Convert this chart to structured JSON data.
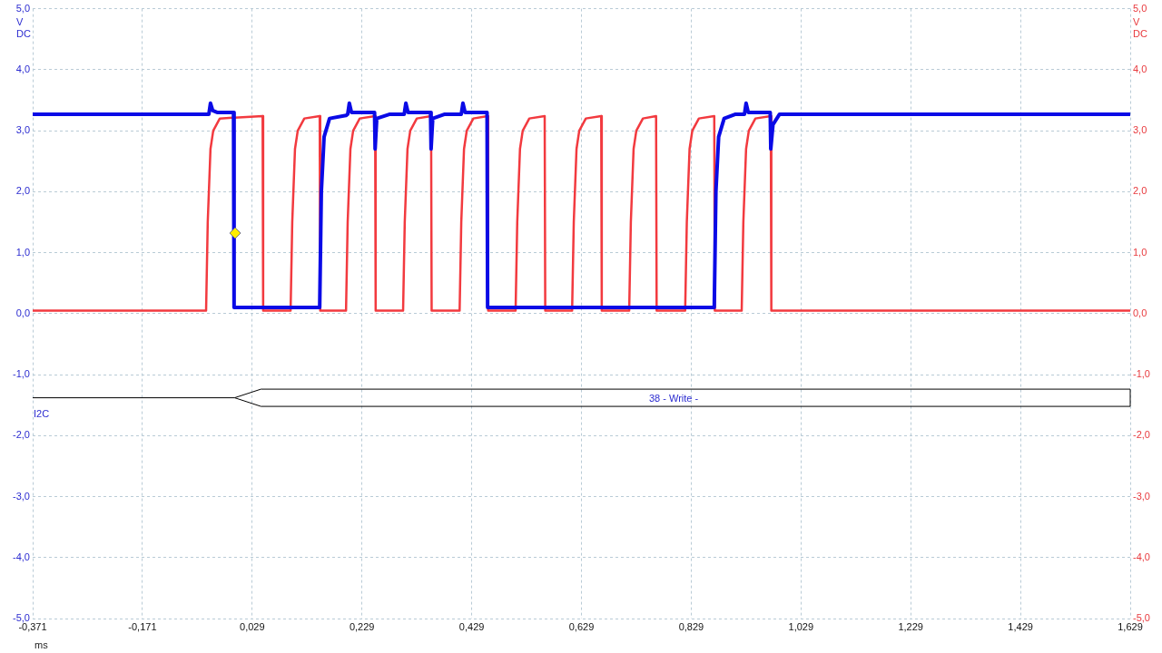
{
  "chart_data": {
    "type": "line",
    "xlabel": "ms",
    "ylabel": "V DC",
    "y2label": "V DC",
    "annotations": [
      "38 - Write -",
      "I2C"
    ],
    "xlim": [
      -0.371,
      1.629
    ],
    "xticks": [
      {
        "value": -0.371,
        "label": "-0,371"
      },
      {
        "value": -0.171,
        "label": "-0,171"
      },
      {
        "value": 0.029,
        "label": "0,029"
      },
      {
        "value": 0.229,
        "label": "0,229"
      },
      {
        "value": 0.429,
        "label": "0,429"
      },
      {
        "value": 0.629,
        "label": "0,629"
      },
      {
        "value": 0.829,
        "label": "0,829"
      },
      {
        "value": 1.029,
        "label": "1,029"
      },
      {
        "value": 1.229,
        "label": "1,229"
      },
      {
        "value": 1.429,
        "label": "1,429"
      },
      {
        "value": 1.629,
        "label": "1,629"
      }
    ],
    "ylim": [
      -5,
      5
    ],
    "yticks": [
      {
        "value": -5,
        "label": "-5,0"
      },
      {
        "value": -4,
        "label": "-4,0"
      },
      {
        "value": -3,
        "label": "-3,0"
      },
      {
        "value": -2,
        "label": "-2,0"
      },
      {
        "value": -1,
        "label": "-1,0"
      },
      {
        "value": 0,
        "label": "0,0"
      },
      {
        "value": 1,
        "label": "1,0"
      },
      {
        "value": 2,
        "label": "2,0"
      },
      {
        "value": 3,
        "label": "3,0"
      },
      {
        "value": 4,
        "label": "4,0"
      },
      {
        "value": 5,
        "label": "5,0"
      }
    ],
    "y2lim": [
      -5,
      5
    ],
    "y2ticks": [
      {
        "value": -5,
        "label": "-5,0"
      },
      {
        "value": -4,
        "label": "-4,0"
      },
      {
        "value": -3,
        "label": "-3,0"
      },
      {
        "value": -2,
        "label": "-2,0"
      },
      {
        "value": -1,
        "label": "-1,0"
      },
      {
        "value": 0,
        "label": "0,0"
      },
      {
        "value": 1,
        "label": "1,0"
      },
      {
        "value": 2,
        "label": "2,0"
      },
      {
        "value": 3,
        "label": "3,0"
      },
      {
        "value": 4,
        "label": "4,0"
      },
      {
        "value": 5,
        "label": "5,0"
      }
    ],
    "grid": true,
    "legend": false,
    "marker": "none",
    "line_style": "solid",
    "series": [
      {
        "color": "#f23a3f",
        "axis": "y2",
        "x": [
          -0.371,
          -0.055,
          -0.052,
          -0.047,
          -0.042,
          -0.03,
          0.048,
          0.049,
          0.099,
          0.102,
          0.107,
          0.112,
          0.124,
          0.152,
          0.153,
          0.2,
          0.203,
          0.208,
          0.213,
          0.225,
          0.253,
          0.254,
          0.304,
          0.307,
          0.312,
          0.317,
          0.329,
          0.355,
          0.356,
          0.407,
          0.41,
          0.415,
          0.42,
          0.432,
          0.458,
          0.459,
          0.509,
          0.512,
          0.517,
          0.522,
          0.534,
          0.562,
          0.563,
          0.612,
          0.615,
          0.62,
          0.625,
          0.637,
          0.665,
          0.666,
          0.716,
          0.719,
          0.724,
          0.729,
          0.741,
          0.765,
          0.766,
          0.818,
          0.821,
          0.826,
          0.831,
          0.843,
          0.871,
          0.872,
          0.921,
          0.924,
          0.929,
          0.934,
          0.946,
          0.974,
          0.975,
          1.629
        ],
        "values": [
          0.05,
          0.05,
          1.5,
          2.7,
          3.0,
          3.2,
          3.24,
          0.05,
          0.05,
          1.5,
          2.7,
          3.0,
          3.2,
          3.24,
          0.05,
          0.05,
          1.5,
          2.7,
          3.0,
          3.2,
          3.24,
          0.05,
          0.05,
          1.5,
          2.7,
          3.0,
          3.2,
          3.24,
          0.05,
          0.05,
          1.5,
          2.7,
          3.0,
          3.2,
          3.24,
          0.05,
          0.05,
          1.5,
          2.7,
          3.0,
          3.2,
          3.24,
          0.05,
          0.05,
          1.5,
          2.7,
          3.0,
          3.2,
          3.24,
          0.05,
          0.05,
          1.5,
          2.7,
          3.0,
          3.2,
          3.24,
          0.05,
          0.05,
          1.5,
          2.7,
          3.0,
          3.2,
          3.24,
          0.05,
          0.05,
          1.5,
          2.7,
          3.0,
          3.2,
          3.24,
          0.05,
          0.05
        ]
      },
      {
        "color": "#0a0ae6",
        "x": [
          -0.371,
          -0.05,
          -0.047,
          -0.043,
          -0.035,
          -0.005,
          -0.004,
          0.152,
          0.155,
          0.16,
          0.17,
          0.2,
          0.203,
          0.206,
          0.21,
          0.252,
          0.253,
          0.256,
          0.28,
          0.306,
          0.309,
          0.313,
          0.354,
          0.355,
          0.358,
          0.38,
          0.41,
          0.413,
          0.417,
          0.457,
          0.458,
          0.871,
          0.874,
          0.879,
          0.889,
          0.91,
          0.926,
          0.929,
          0.933,
          0.973,
          0.974,
          0.978,
          0.99,
          1.629
        ],
        "values": [
          3.27,
          3.27,
          3.45,
          3.33,
          3.3,
          3.3,
          0.1,
          0.1,
          2.0,
          2.9,
          3.2,
          3.25,
          3.27,
          3.45,
          3.3,
          3.3,
          2.7,
          3.2,
          3.27,
          3.27,
          3.45,
          3.3,
          3.3,
          2.7,
          3.2,
          3.27,
          3.27,
          3.45,
          3.3,
          3.3,
          0.1,
          0.1,
          2.0,
          2.9,
          3.2,
          3.27,
          3.27,
          3.45,
          3.3,
          3.3,
          2.7,
          3.1,
          3.27,
          3.27
        ]
      }
    ]
  }
}
